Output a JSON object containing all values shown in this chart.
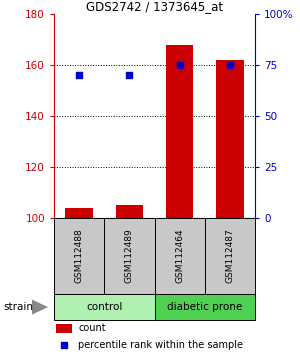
{
  "title": "GDS2742 / 1373645_at",
  "samples": [
    "GSM112488",
    "GSM112489",
    "GSM112464",
    "GSM112487"
  ],
  "counts": [
    104,
    105,
    168,
    162
  ],
  "percentiles": [
    70,
    70,
    75,
    75
  ],
  "ylim_left": [
    100,
    180
  ],
  "ylim_right": [
    0,
    100
  ],
  "yticks_left": [
    100,
    120,
    140,
    160,
    180
  ],
  "ytick_labels_left": [
    "100",
    "120",
    "140",
    "160",
    "180"
  ],
  "yticks_right": [
    0,
    25,
    50,
    75,
    100
  ],
  "ytick_labels_right": [
    "0",
    "25",
    "50",
    "75",
    "100%"
  ],
  "groups": [
    {
      "label": "control",
      "indices": [
        0,
        1
      ],
      "color": "#b0f0b0"
    },
    {
      "label": "diabetic prone",
      "indices": [
        2,
        3
      ],
      "color": "#50d050"
    }
  ],
  "bar_color": "#cc0000",
  "dot_color": "#0000cc",
  "bar_width": 0.55,
  "label_area_color": "#c8c8c8",
  "left_axis_color": "#cc0000",
  "right_axis_color": "#0000cc",
  "legend_count_label": "count",
  "legend_pct_label": "percentile rank within the sample",
  "strain_label": "strain",
  "dot_size": 18
}
